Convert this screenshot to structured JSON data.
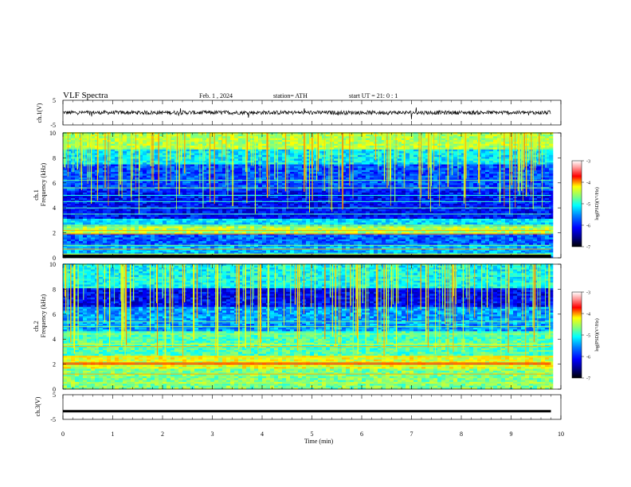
{
  "header": {
    "title": "VLF  Spectra",
    "date": "Feb. 1  , 2024",
    "station": "station= ATH",
    "start": "start  UT  =   21: 0   : 1"
  },
  "chart_data": [
    {
      "type": "line",
      "name": "ch1-waveform",
      "ylabel": "ch.1(V)",
      "ylim": [
        -5,
        5
      ],
      "yticks": [
        "5",
        "-5"
      ],
      "x_range_min": [
        0,
        9.8
      ],
      "description_level": 0
    },
    {
      "type": "heatmap",
      "name": "ch1-spectrogram",
      "ylabel": "ch.1\nFrequency  (kHz)",
      "ylabel_lines": [
        "ch.1",
        "Frequency  (kHz)"
      ],
      "ylim": [
        0,
        10
      ],
      "yticks": [
        "0",
        "2",
        "4",
        "6",
        "8",
        "10"
      ],
      "x_range_min": [
        0,
        9.8
      ],
      "colorbar": {
        "label": "log(PSD)(V²/Hz)",
        "range": [
          -7,
          -3
        ],
        "ticks": [
          "-3",
          "-4",
          "-5",
          "-6",
          "-7"
        ]
      }
    },
    {
      "type": "heatmap",
      "name": "ch2-spectrogram",
      "ylabel": "ch.2\nFrequency  (kHz)",
      "ylabel_lines": [
        "ch.2",
        "Frequency  (kHz)"
      ],
      "ylim": [
        0,
        10
      ],
      "yticks": [
        "0",
        "2",
        "4",
        "6",
        "8",
        "10"
      ],
      "x_range_min": [
        0,
        9.8
      ],
      "colorbar": {
        "label": "log(PSD)(V²/Hz)",
        "range": [
          -7,
          -3
        ],
        "ticks": [
          "-3",
          "-4",
          "-5",
          "-6",
          "-7"
        ]
      }
    },
    {
      "type": "line",
      "name": "ch3-waveform",
      "ylabel": "ch.3(V)",
      "ylim": [
        -5,
        5
      ],
      "yticks": [
        "5",
        "-5"
      ],
      "x_range_min": [
        0,
        9.8
      ],
      "level": -1.7
    }
  ],
  "xaxis": {
    "label": "Time  (min)",
    "range": [
      0,
      10
    ],
    "ticks": [
      "0",
      "1",
      "2",
      "3",
      "4",
      "5",
      "6",
      "7",
      "8",
      "9",
      "10"
    ]
  },
  "colors": {
    "jet": [
      "#00007f",
      "#0000ff",
      "#007fff",
      "#00ffff",
      "#7fff7f",
      "#ffff00",
      "#ff7f00",
      "#ff0000",
      "#7f0000"
    ]
  }
}
